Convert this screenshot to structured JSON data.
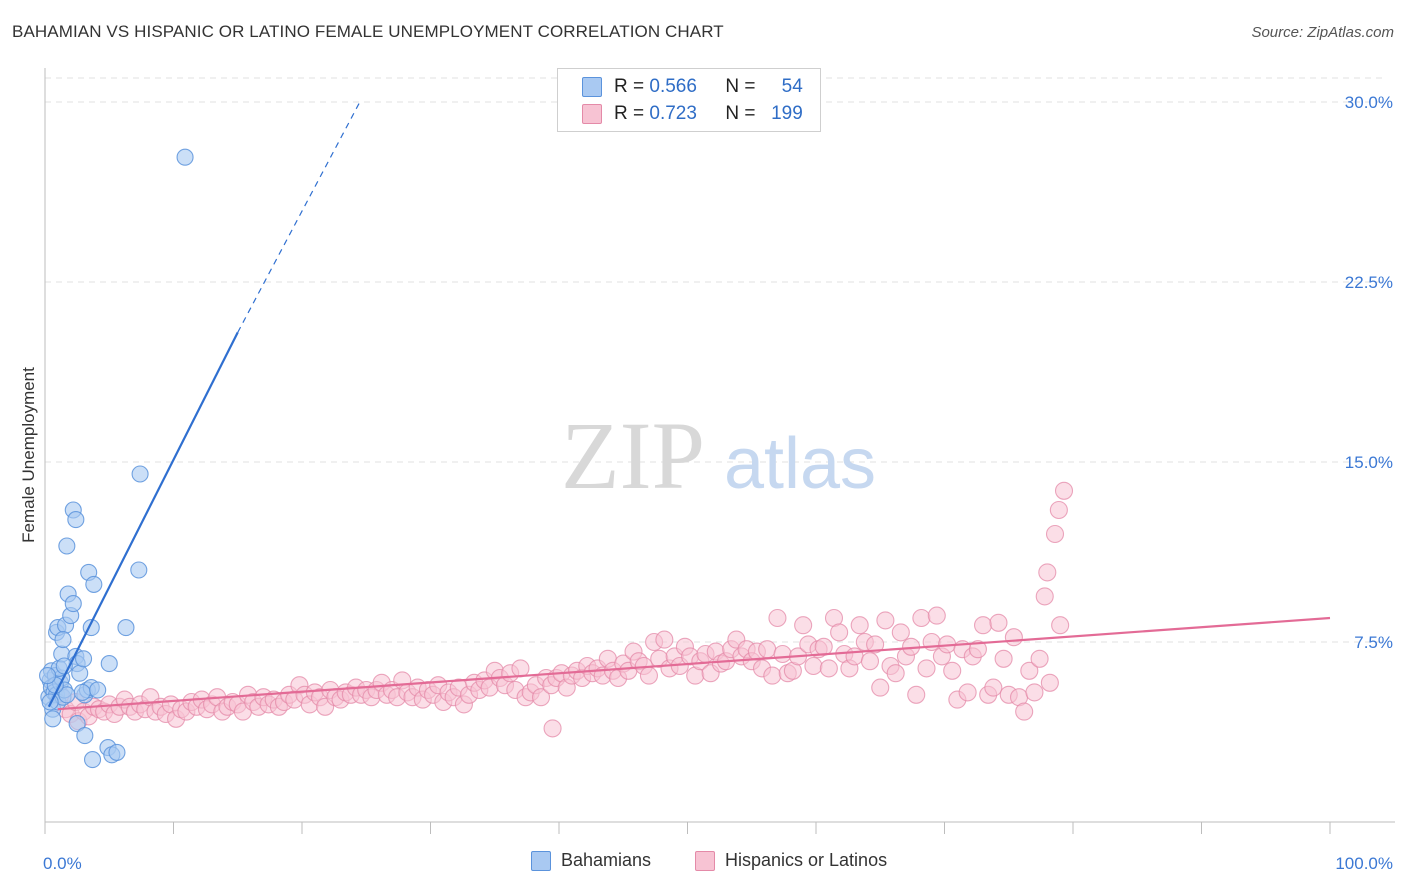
{
  "title": "BAHAMIAN VS HISPANIC OR LATINO FEMALE UNEMPLOYMENT CORRELATION CHART",
  "source": "Source: ZipAtlas.com",
  "watermark": {
    "zip": "ZIP",
    "atlas": "atlas"
  },
  "legend_top": [
    {
      "r_label": "R =",
      "r_value": "0.566",
      "n_label": "N =",
      "n_value": "54"
    },
    {
      "r_label": "R =",
      "r_value": "0.723",
      "n_label": "N =",
      "n_value": "199"
    }
  ],
  "legend_bottom": [
    "Bahamians",
    "Hispanics or Latinos"
  ],
  "colors": {
    "blue_fill": "#a9c9f2",
    "blue_stroke": "#5b93dc",
    "blue_line": "#2f6fd0",
    "pink_fill": "#f7c3d3",
    "pink_stroke": "#e48aa8",
    "pink_line": "#e36b96",
    "tick_text": "#3b78d4",
    "grid": "#e2e2e2"
  },
  "chart_data": {
    "type": "scatter",
    "title": "BAHAMIAN VS HISPANIC OR LATINO FEMALE UNEMPLOYMENT CORRELATION CHART",
    "xlabel": "",
    "ylabel": "Female Unemployment",
    "xlim": [
      0,
      100
    ],
    "ylim": [
      0,
      30
    ],
    "x_tick_labels": [
      "0.0%",
      "100.0%"
    ],
    "y_ticks": [
      7.5,
      15.0,
      22.5,
      30.0
    ],
    "y_tick_labels": [
      "7.5%",
      "15.0%",
      "22.5%",
      "30.0%"
    ],
    "grid": true,
    "legend_placement": "top-center",
    "series": [
      {
        "name": "Bahamians",
        "color": "#5b93dc",
        "r": 0.566,
        "n": 54,
        "trend": {
          "x": [
            0.3,
            15.0
          ],
          "y": [
            4.8,
            20.4
          ],
          "dashed_extension_to": [
            24.5,
            30.0
          ]
        },
        "points": [
          [
            0.3,
            5.2
          ],
          [
            0.4,
            5.9
          ],
          [
            0.5,
            5.6
          ],
          [
            0.6,
            4.7
          ],
          [
            0.7,
            5.4
          ],
          [
            0.5,
            6.3
          ],
          [
            0.8,
            6.1
          ],
          [
            0.9,
            5.3
          ],
          [
            1.0,
            5.0
          ],
          [
            0.6,
            4.3
          ],
          [
            1.2,
            5.8
          ],
          [
            1.3,
            6.0
          ],
          [
            1.1,
            6.4
          ],
          [
            1.4,
            5.2
          ],
          [
            1.5,
            5.5
          ],
          [
            0.9,
            7.9
          ],
          [
            1.0,
            8.1
          ],
          [
            1.6,
            8.2
          ],
          [
            1.8,
            9.5
          ],
          [
            1.3,
            7.0
          ],
          [
            1.4,
            7.6
          ],
          [
            2.0,
            8.6
          ],
          [
            2.2,
            9.1
          ],
          [
            2.4,
            6.9
          ],
          [
            2.5,
            6.6
          ],
          [
            2.7,
            6.2
          ],
          [
            3.0,
            6.8
          ],
          [
            3.1,
            5.3
          ],
          [
            3.3,
            5.5
          ],
          [
            3.6,
            5.6
          ],
          [
            2.2,
            13.0
          ],
          [
            2.4,
            12.6
          ],
          [
            1.7,
            11.5
          ],
          [
            3.4,
            10.4
          ],
          [
            3.8,
            9.9
          ],
          [
            7.3,
            10.5
          ],
          [
            5.0,
            6.6
          ],
          [
            6.3,
            8.1
          ],
          [
            3.6,
            8.1
          ],
          [
            2.9,
            5.4
          ],
          [
            1.7,
            5.3
          ],
          [
            2.5,
            4.1
          ],
          [
            3.1,
            3.6
          ],
          [
            3.7,
            2.6
          ],
          [
            4.9,
            3.1
          ],
          [
            5.2,
            2.8
          ],
          [
            5.6,
            2.9
          ],
          [
            7.4,
            14.5
          ],
          [
            10.9,
            27.7
          ],
          [
            0.4,
            5.0
          ],
          [
            0.8,
            5.7
          ],
          [
            1.5,
            6.5
          ],
          [
            4.1,
            5.5
          ],
          [
            0.2,
            6.1
          ]
        ]
      },
      {
        "name": "Hispanics or Latinos",
        "color": "#e48aa8",
        "r": 0.723,
        "n": 199,
        "trend": {
          "x": [
            1.0,
            100.0
          ],
          "y": [
            4.7,
            8.5
          ]
        },
        "points": [
          [
            1.2,
            5.3
          ],
          [
            1.6,
            4.7
          ],
          [
            2.0,
            4.5
          ],
          [
            2.4,
            5.0
          ],
          [
            2.6,
            4.2
          ],
          [
            3.0,
            4.6
          ],
          [
            3.4,
            4.4
          ],
          [
            3.8,
            4.8
          ],
          [
            4.2,
            4.7
          ],
          [
            4.6,
            4.6
          ],
          [
            5.0,
            4.9
          ],
          [
            5.4,
            4.5
          ],
          [
            5.8,
            4.8
          ],
          [
            6.2,
            5.1
          ],
          [
            6.6,
            4.8
          ],
          [
            7.0,
            4.6
          ],
          [
            7.4,
            4.9
          ],
          [
            7.8,
            4.7
          ],
          [
            8.2,
            5.2
          ],
          [
            8.6,
            4.6
          ],
          [
            9.0,
            4.8
          ],
          [
            9.4,
            4.5
          ],
          [
            9.8,
            4.9
          ],
          [
            10.2,
            4.3
          ],
          [
            10.6,
            4.7
          ],
          [
            11.0,
            4.6
          ],
          [
            11.4,
            5.0
          ],
          [
            11.8,
            4.8
          ],
          [
            12.2,
            5.1
          ],
          [
            12.6,
            4.7
          ],
          [
            13.0,
            4.9
          ],
          [
            13.4,
            5.2
          ],
          [
            13.8,
            4.6
          ],
          [
            14.2,
            4.8
          ],
          [
            14.6,
            5.0
          ],
          [
            15.0,
            4.9
          ],
          [
            15.4,
            4.6
          ],
          [
            15.8,
            5.3
          ],
          [
            16.2,
            5.0
          ],
          [
            16.6,
            4.8
          ],
          [
            17.0,
            5.2
          ],
          [
            17.4,
            4.9
          ],
          [
            17.8,
            5.1
          ],
          [
            18.2,
            4.8
          ],
          [
            18.6,
            5.0
          ],
          [
            19.0,
            5.3
          ],
          [
            19.4,
            5.1
          ],
          [
            19.8,
            5.7
          ],
          [
            20.2,
            5.3
          ],
          [
            20.6,
            4.9
          ],
          [
            21.0,
            5.4
          ],
          [
            21.4,
            5.2
          ],
          [
            21.8,
            4.8
          ],
          [
            22.2,
            5.5
          ],
          [
            22.6,
            5.2
          ],
          [
            23.0,
            5.1
          ],
          [
            23.4,
            5.4
          ],
          [
            23.8,
            5.3
          ],
          [
            24.2,
            5.6
          ],
          [
            24.6,
            5.3
          ],
          [
            25.0,
            5.5
          ],
          [
            25.4,
            5.2
          ],
          [
            25.8,
            5.5
          ],
          [
            26.2,
            5.8
          ],
          [
            26.6,
            5.3
          ],
          [
            27.0,
            5.5
          ],
          [
            27.4,
            5.2
          ],
          [
            27.8,
            5.9
          ],
          [
            28.2,
            5.4
          ],
          [
            28.6,
            5.2
          ],
          [
            29.0,
            5.6
          ],
          [
            29.4,
            5.1
          ],
          [
            29.8,
            5.5
          ],
          [
            30.2,
            5.3
          ],
          [
            30.6,
            5.7
          ],
          [
            31.0,
            5.0
          ],
          [
            31.4,
            5.4
          ],
          [
            31.8,
            5.2
          ],
          [
            32.2,
            5.6
          ],
          [
            32.6,
            4.9
          ],
          [
            33.0,
            5.3
          ],
          [
            33.4,
            5.8
          ],
          [
            33.8,
            5.5
          ],
          [
            34.2,
            5.9
          ],
          [
            34.6,
            5.6
          ],
          [
            35.0,
            6.3
          ],
          [
            35.4,
            6.0
          ],
          [
            35.8,
            5.7
          ],
          [
            36.2,
            6.2
          ],
          [
            36.6,
            5.5
          ],
          [
            37.0,
            6.4
          ],
          [
            37.4,
            5.2
          ],
          [
            37.8,
            5.4
          ],
          [
            38.2,
            5.7
          ],
          [
            38.6,
            5.2
          ],
          [
            39.0,
            6.0
          ],
          [
            39.4,
            5.7
          ],
          [
            39.8,
            6.0
          ],
          [
            40.2,
            6.2
          ],
          [
            40.6,
            5.6
          ],
          [
            41.0,
            6.1
          ],
          [
            41.4,
            6.3
          ],
          [
            41.8,
            6.0
          ],
          [
            42.2,
            6.5
          ],
          [
            42.6,
            6.2
          ],
          [
            43.0,
            6.4
          ],
          [
            43.4,
            6.1
          ],
          [
            43.8,
            6.8
          ],
          [
            44.2,
            6.3
          ],
          [
            44.6,
            6.0
          ],
          [
            45.0,
            6.6
          ],
          [
            45.4,
            6.3
          ],
          [
            45.8,
            7.1
          ],
          [
            46.2,
            6.7
          ],
          [
            46.6,
            6.5
          ],
          [
            47.0,
            6.1
          ],
          [
            47.4,
            7.5
          ],
          [
            47.8,
            6.8
          ],
          [
            48.2,
            7.6
          ],
          [
            48.6,
            6.4
          ],
          [
            49.0,
            6.9
          ],
          [
            49.4,
            6.5
          ],
          [
            49.8,
            7.3
          ],
          [
            50.2,
            6.9
          ],
          [
            50.6,
            6.1
          ],
          [
            51.0,
            6.7
          ],
          [
            51.4,
            7.0
          ],
          [
            51.8,
            6.2
          ],
          [
            52.2,
            7.1
          ],
          [
            52.6,
            6.6
          ],
          [
            53.0,
            6.7
          ],
          [
            53.4,
            7.2
          ],
          [
            53.8,
            7.6
          ],
          [
            54.2,
            6.9
          ],
          [
            54.6,
            7.2
          ],
          [
            55.0,
            6.7
          ],
          [
            55.4,
            7.1
          ],
          [
            55.8,
            6.4
          ],
          [
            56.2,
            7.2
          ],
          [
            56.6,
            6.1
          ],
          [
            57.0,
            8.5
          ],
          [
            57.4,
            7.0
          ],
          [
            57.8,
            6.2
          ],
          [
            58.2,
            6.3
          ],
          [
            58.6,
            6.9
          ],
          [
            59.0,
            8.2
          ],
          [
            59.4,
            7.4
          ],
          [
            59.8,
            6.5
          ],
          [
            60.2,
            7.2
          ],
          [
            60.6,
            7.3
          ],
          [
            61.0,
            6.4
          ],
          [
            61.4,
            8.5
          ],
          [
            61.8,
            7.9
          ],
          [
            62.2,
            7.0
          ],
          [
            62.6,
            6.4
          ],
          [
            63.0,
            6.9
          ],
          [
            63.4,
            8.2
          ],
          [
            63.8,
            7.5
          ],
          [
            64.2,
            6.7
          ],
          [
            64.6,
            7.4
          ],
          [
            65.0,
            5.6
          ],
          [
            65.4,
            8.4
          ],
          [
            65.8,
            6.5
          ],
          [
            66.2,
            6.2
          ],
          [
            66.6,
            7.9
          ],
          [
            67.0,
            6.9
          ],
          [
            67.4,
            7.3
          ],
          [
            67.8,
            5.3
          ],
          [
            68.2,
            8.5
          ],
          [
            68.6,
            6.4
          ],
          [
            69.0,
            7.5
          ],
          [
            69.4,
            8.6
          ],
          [
            69.8,
            6.9
          ],
          [
            70.2,
            7.4
          ],
          [
            70.6,
            6.3
          ],
          [
            71.0,
            5.1
          ],
          [
            71.4,
            7.2
          ],
          [
            71.8,
            5.4
          ],
          [
            72.2,
            6.9
          ],
          [
            72.6,
            7.2
          ],
          [
            73.0,
            8.2
          ],
          [
            73.4,
            5.3
          ],
          [
            73.8,
            5.6
          ],
          [
            74.2,
            8.3
          ],
          [
            74.6,
            6.8
          ],
          [
            75.0,
            5.3
          ],
          [
            75.4,
            7.7
          ],
          [
            75.8,
            5.2
          ],
          [
            76.2,
            4.6
          ],
          [
            76.6,
            6.3
          ],
          [
            77.0,
            5.4
          ],
          [
            77.4,
            6.8
          ],
          [
            77.8,
            9.4
          ],
          [
            78.2,
            5.8
          ],
          [
            78.6,
            12.0
          ],
          [
            78.9,
            13.0
          ],
          [
            79.3,
            13.8
          ],
          [
            78.0,
            10.4
          ],
          [
            79.0,
            8.2
          ],
          [
            39.5,
            3.9
          ]
        ]
      }
    ]
  }
}
